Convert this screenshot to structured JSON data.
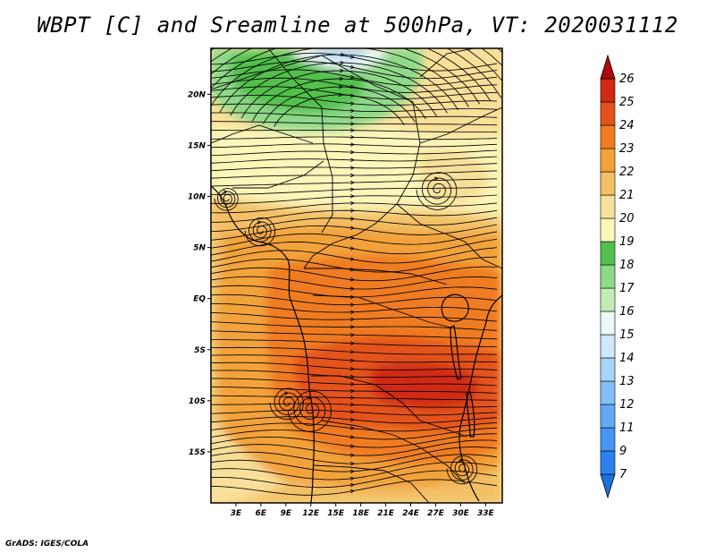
{
  "chart_data": {
    "type": "heatmap",
    "title": "WBPT [C] and Sreamline at 500hPa, VT: 2020031112",
    "variable": "WBPT [C]",
    "overlay": "Sreamline",
    "level": "500hPa",
    "valid_time": "2020031112",
    "x_ticks": [
      "3E",
      "6E",
      "9E",
      "12E",
      "15E",
      "18E",
      "21E",
      "24E",
      "27E",
      "30E",
      "33E"
    ],
    "x_tick_values": [
      3,
      6,
      9,
      12,
      15,
      18,
      21,
      24,
      27,
      30,
      33
    ],
    "y_ticks": [
      "20N",
      "15N",
      "10N",
      "5N",
      "EQ",
      "5S",
      "10S",
      "15S"
    ],
    "y_tick_values": [
      20,
      15,
      10,
      5,
      0,
      -5,
      -10,
      -15
    ],
    "xlim": [
      0,
      35
    ],
    "ylim": [
      -20,
      24.5
    ],
    "colorbar": {
      "levels": [
        7,
        9,
        11,
        12,
        13,
        14,
        15,
        16,
        17,
        18,
        19,
        20,
        21,
        22,
        23,
        24,
        25,
        26
      ],
      "labels": [
        "7",
        "9",
        "11",
        "12",
        "13",
        "14",
        "15",
        "16",
        "17",
        "18",
        "19",
        "20",
        "21",
        "22",
        "23",
        "24",
        "25",
        "26"
      ],
      "colors": [
        "#1e6fe0",
        "#2b82ee",
        "#4496f2",
        "#62aaf5",
        "#84c0f8",
        "#a8d4fb",
        "#cfe8fc",
        "#ebf8f6",
        "#c2ecb6",
        "#8fd98a",
        "#52c04c",
        "#fbf6ba",
        "#f8e09a",
        "#f3c066",
        "#f2a23a",
        "#ef7c22",
        "#e4521a",
        "#d02a12",
        "#b00a0a"
      ]
    }
  },
  "credit": "GrADS: IGES/COLA"
}
